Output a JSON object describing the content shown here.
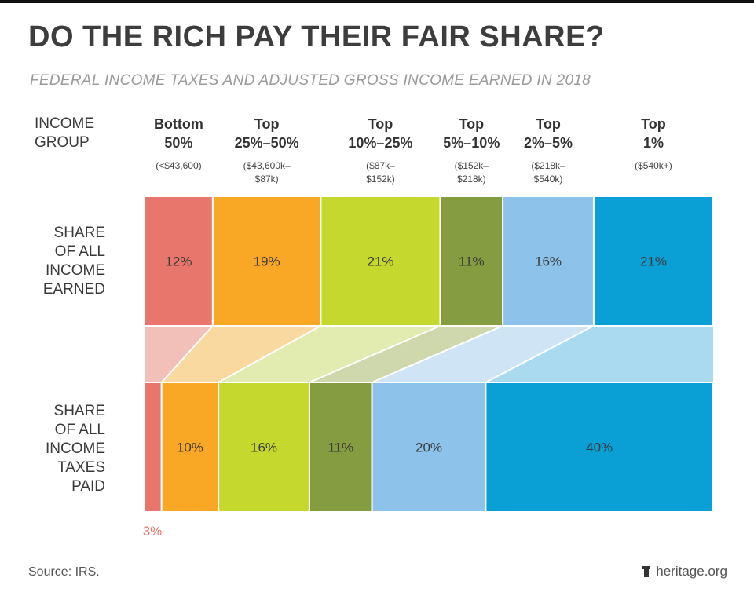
{
  "header": {
    "title": "DO THE RICH PAY THEIR FAIR SHARE?",
    "subtitle": "FEDERAL INCOME TAXES AND ADJUSTED GROSS INCOME EARNED IN 2018"
  },
  "labels": {
    "income_group": [
      "INCOME",
      "GROUP"
    ],
    "share_income": [
      "SHARE",
      "OF ALL",
      "INCOME",
      "EARNED"
    ],
    "share_taxes": [
      "SHARE",
      "OF ALL",
      "INCOME",
      "TAXES",
      "PAID"
    ]
  },
  "groups": [
    {
      "name": [
        "Bottom",
        "50%"
      ],
      "range": [
        "(<$43,600)"
      ],
      "color": "#e8766c",
      "light": "#f3c0b9"
    },
    {
      "name": [
        "Top",
        "25%–50%"
      ],
      "range": [
        "($43,600k–",
        "$87k)"
      ],
      "color": "#f9a825",
      "light": "#fad9a0"
    },
    {
      "name": [
        "Top",
        "10%–25%"
      ],
      "range": [
        "($87k–",
        "$152k)"
      ],
      "color": "#c5d82e",
      "light": "#e2ebb0"
    },
    {
      "name": [
        "Top",
        "5%–10%"
      ],
      "range": [
        "($152k–",
        "$218k)"
      ],
      "color": "#869c40",
      "light": "#cfd8ad"
    },
    {
      "name": [
        "Top",
        "2%–5%"
      ],
      "range": [
        "($218k–",
        "$540k)"
      ],
      "color": "#8dc3ea",
      "light": "#cfe5f5"
    },
    {
      "name": [
        "Top",
        "1%"
      ],
      "range": [
        "($540k+)"
      ],
      "color": "#0aa0d6",
      "light": "#a9daf0"
    }
  ],
  "chart_data": {
    "type": "bar",
    "orientation": "stacked-horizontal-100%",
    "categories": [
      "Bottom 50%",
      "Top 25%–50%",
      "Top 10%–25%",
      "Top 5%–10%",
      "Top 2%–5%",
      "Top 1%"
    ],
    "series": [
      {
        "name": "SHARE OF ALL INCOME EARNED",
        "values": [
          12,
          19,
          21,
          11,
          16,
          21
        ]
      },
      {
        "name": "SHARE OF ALL INCOME TAXES PAID",
        "values": [
          3,
          10,
          16,
          11,
          20,
          40
        ]
      }
    ],
    "unit": "%",
    "ylim": [
      0,
      100
    ]
  },
  "footer": {
    "source": "Source: IRS.",
    "org": "heritage.org",
    "org_icon": "lighthouse-icon"
  }
}
